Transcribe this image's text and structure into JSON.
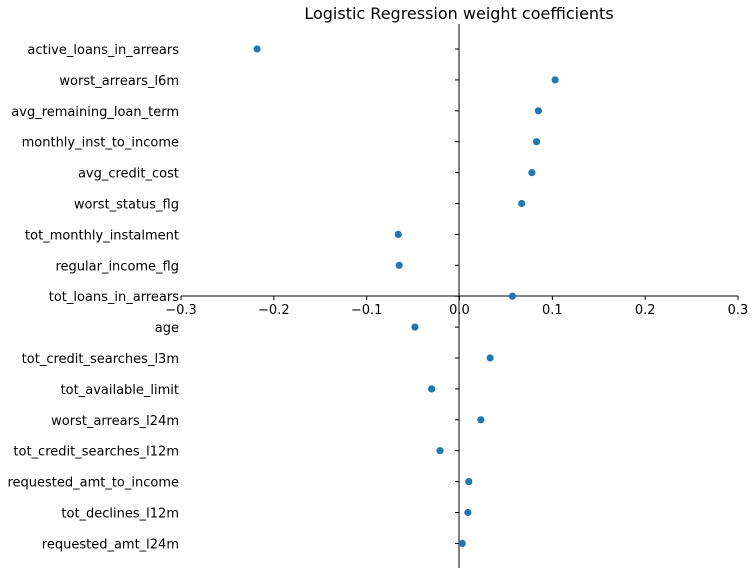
{
  "chart_data": {
    "type": "scatter",
    "title": "Logistic Regression weight coefficients",
    "xlabel": "",
    "ylabel": "",
    "xlim": [
      -0.3,
      0.3
    ],
    "xticks": [
      -0.3,
      -0.2,
      -0.1,
      0.0,
      0.1,
      0.2,
      0.3
    ],
    "xtick_labels": [
      "−0.3",
      "−0.2",
      "−0.1",
      "0.0",
      "0.1",
      "0.2",
      "0.3"
    ],
    "grid": false,
    "legend": "none",
    "point_color": "#1f77b4",
    "categories": [
      "active_loans_in_arrears",
      "worst_arrears_l6m",
      "avg_remaining_loan_term",
      "monthly_inst_to_income",
      "avg_credit_cost",
      "worst_status_flg",
      "tot_monthly_instalment",
      "regular_income_flg",
      "tot_loans_in_arrears",
      "age",
      "tot_credit_searches_l3m",
      "tot_available_limit",
      "worst_arrears_l24m",
      "tot_credit_searches_l12m",
      "requested_amt_to_income",
      "tot_declines_l12m",
      "requested_amt_l24m"
    ],
    "values": [
      -0.218,
      0.103,
      0.085,
      0.083,
      0.078,
      0.067,
      -0.066,
      -0.065,
      0.057,
      -0.048,
      0.033,
      -0.03,
      0.023,
      -0.021,
      0.01,
      0.009,
      0.003
    ]
  }
}
